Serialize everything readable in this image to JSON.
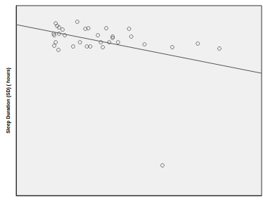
{
  "chart_data": {
    "type": "scatter",
    "y_label": "Sleep Duration (SD) ( hours)",
    "xlim": [
      0,
      100
    ],
    "ylim": [
      0,
      10
    ],
    "tick_labels": false,
    "grid": false,
    "series": [
      {
        "type": "scatter",
        "marker": "circle-open",
        "color": "#333333",
        "x": [
          16.1,
          16.7,
          17.5,
          15.3,
          15.5,
          17.5,
          18.9,
          19.8,
          16.1,
          15.5,
          17.2,
          23.2,
          24.9,
          26.0,
          28.2,
          29.4,
          28.8,
          30.2,
          33.3,
          34.5,
          35.3,
          36.7,
          37.9,
          39.3,
          39.3,
          41.5,
          46.0,
          46.9,
          52.3,
          63.6,
          74.0,
          82.8,
          59.6
        ],
        "values": [
          9.07,
          8.93,
          8.85,
          8.52,
          8.44,
          8.52,
          8.74,
          8.44,
          8.07,
          7.89,
          7.67,
          7.85,
          9.15,
          8.07,
          8.78,
          8.81,
          7.85,
          7.85,
          8.44,
          8.07,
          7.81,
          8.81,
          8.07,
          8.37,
          8.3,
          8.07,
          8.78,
          8.37,
          7.96,
          7.81,
          8.0,
          7.74,
          1.59
        ]
      },
      {
        "type": "line",
        "line_style": "solid",
        "color": "#555555",
        "x": [
          0,
          100
        ],
        "values": [
          9.0,
          6.44
        ]
      }
    ]
  }
}
